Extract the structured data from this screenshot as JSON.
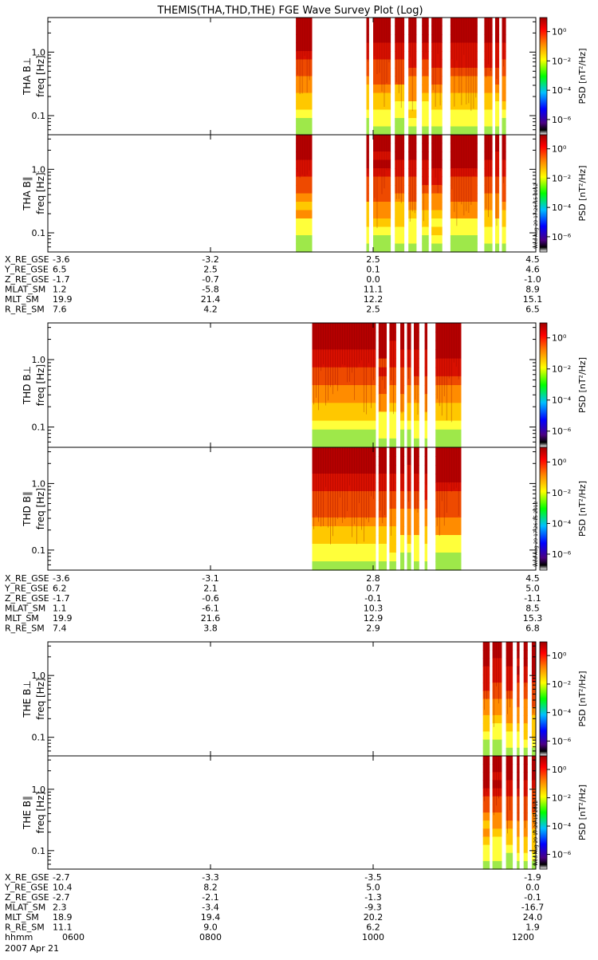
{
  "title": "THEMIS(THA,THD,THE) FGE Wave Survey Plot (Log)",
  "stamp": "Wed Aug 29 17:26:15 2012",
  "colorbar": {
    "label": "PSD [nT²/Hz]",
    "ticks": [
      "10⁰",
      "10⁻²",
      "10⁻⁴",
      "10⁻⁶"
    ]
  },
  "ephem_labels": [
    "X_RE_GSE",
    "Y_RE_GSE",
    "Z_RE_GSE",
    "MLAT_SM",
    "MLT_SM",
    "R_RE_SM"
  ],
  "time_axis": {
    "label": "hhmm",
    "date": "2007 Apr 21",
    "ticks": [
      "0600",
      "0800",
      "1000",
      "1200"
    ]
  },
  "chart_data": [
    {
      "type": "heatmap",
      "probe": "THA",
      "panels": [
        {
          "ylabel": "THA B⊥",
          "units": "freq [Hz]"
        },
        {
          "ylabel": "THA B∥",
          "units": "freq [Hz]"
        }
      ],
      "yticks": [
        "1.0",
        "0.1"
      ],
      "ylim": [
        0.05,
        3.5
      ],
      "yscale": "log",
      "xlim": [
        "0600",
        "1200"
      ],
      "data_intervals_hhmm": [
        [
          "0903",
          "0915"
        ],
        [
          "0955",
          "0957"
        ],
        [
          "1000",
          "1013"
        ],
        [
          "1016",
          "1023"
        ],
        [
          "1026",
          "1032"
        ],
        [
          "1036",
          "1041"
        ],
        [
          "1043",
          "1051"
        ],
        [
          "1057",
          "1117"
        ],
        [
          "1122",
          "1128"
        ],
        [
          "1130",
          "1133"
        ],
        [
          "1135",
          "1138"
        ]
      ],
      "ephemeris": {
        "X_RE_GSE": [
          "-3.6",
          "-3.2",
          "2.5",
          "4.5"
        ],
        "Y_RE_GSE": [
          "6.5",
          "2.5",
          "0.1",
          "4.6"
        ],
        "Z_RE_GSE": [
          "-1.7",
          "-0.7",
          "0.0",
          "-1.0"
        ],
        "MLAT_SM": [
          "1.2",
          "-5.8",
          "11.1",
          "8.9"
        ],
        "MLT_SM": [
          "19.9",
          "21.4",
          "12.2",
          "15.1"
        ],
        "R_RE_SM": [
          "7.6",
          "4.2",
          "2.5",
          "6.5"
        ]
      }
    },
    {
      "type": "heatmap",
      "probe": "THD",
      "panels": [
        {
          "ylabel": "THD B⊥",
          "units": "freq [Hz]"
        },
        {
          "ylabel": "THD B∥",
          "units": "freq [Hz]"
        }
      ],
      "yticks": [
        "1.0",
        "0.1"
      ],
      "ylim": [
        0.05,
        3.5
      ],
      "yscale": "log",
      "xlim": [
        "0600",
        "1200"
      ],
      "data_intervals_hhmm": [
        [
          "0915",
          "1002"
        ],
        [
          "1004",
          "1010"
        ],
        [
          "1012",
          "1017"
        ],
        [
          "1020",
          "1023"
        ],
        [
          "1025",
          "1028"
        ],
        [
          "1030",
          "1034"
        ],
        [
          "1038",
          "1040"
        ],
        [
          "1046",
          "1105"
        ]
      ],
      "ephemeris": {
        "X_RE_GSE": [
          "-3.6",
          "-3.1",
          "2.8",
          "4.5"
        ],
        "Y_RE_GSE": [
          "6.2",
          "2.1",
          "0.7",
          "5.0"
        ],
        "Z_RE_GSE": [
          "-1.7",
          "-0.6",
          "-0.1",
          "-1.1"
        ],
        "MLAT_SM": [
          "1.1",
          "-6.1",
          "10.3",
          "8.5"
        ],
        "MLT_SM": [
          "19.9",
          "21.6",
          "12.9",
          "15.3"
        ],
        "R_RE_SM": [
          "7.4",
          "3.8",
          "2.9",
          "6.8"
        ]
      }
    },
    {
      "type": "heatmap",
      "probe": "THE",
      "panels": [
        {
          "ylabel": "THE B⊥",
          "units": "freq [Hz]"
        },
        {
          "ylabel": "THE B∥",
          "units": "freq [Hz]"
        }
      ],
      "yticks": [
        "1.0",
        "0.1"
      ],
      "ylim": [
        0.05,
        3.5
      ],
      "yscale": "log",
      "xlim": [
        "0600",
        "1200"
      ],
      "data_intervals_hhmm": [
        [
          "1121",
          "1126"
        ],
        [
          "1128",
          "1135"
        ],
        [
          "1138",
          "1143"
        ],
        [
          "1146",
          "1148"
        ],
        [
          "1151",
          "1154"
        ],
        [
          "1157",
          "1200"
        ]
      ],
      "ephemeris": {
        "X_RE_GSE": [
          "-2.7",
          "-3.3",
          "-3.5",
          "-1.9"
        ],
        "Y_RE_GSE": [
          "10.4",
          "8.2",
          "5.0",
          "0.0"
        ],
        "Z_RE_GSE": [
          "-2.7",
          "-2.1",
          "-1.3",
          "-0.1"
        ],
        "MLAT_SM": [
          "2.3",
          "-3.4",
          "-9.3",
          "-16.7"
        ],
        "MLT_SM": [
          "18.9",
          "19.4",
          "20.2",
          "24.0"
        ],
        "R_RE_SM": [
          "11.1",
          "9.0",
          "6.2",
          "1.9"
        ]
      }
    }
  ]
}
